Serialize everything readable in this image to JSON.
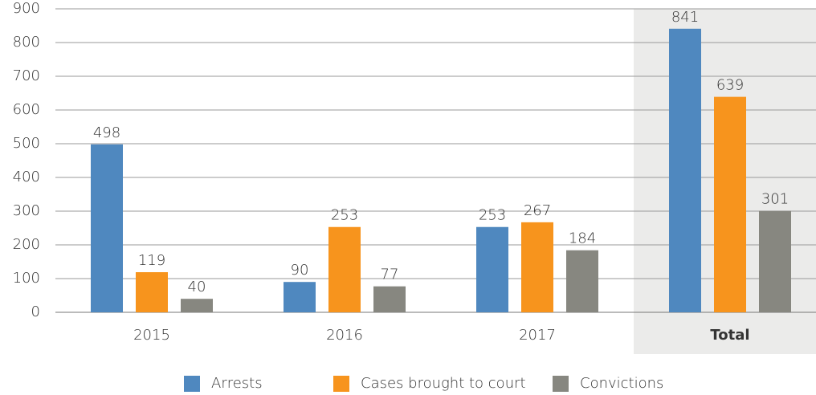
{
  "chart_data": {
    "type": "bar",
    "categories": [
      "2015",
      "2016",
      "2017",
      "Total"
    ],
    "series": [
      {
        "name": "Arrests",
        "color": "#4f88bf",
        "values": [
          498,
          90,
          253,
          841
        ]
      },
      {
        "name": "Cases brought to court",
        "color": "#f7941d",
        "values": [
          119,
          253,
          267,
          639
        ]
      },
      {
        "name": "Convictions",
        "color": "#878780",
        "values": [
          40,
          77,
          184,
          301
        ]
      }
    ],
    "ylim": [
      0,
      900
    ],
    "yticks": [
      0,
      100,
      200,
      300,
      400,
      500,
      600,
      700,
      800,
      900
    ],
    "grid": true,
    "highlight_index": 3,
    "legend": "bottom"
  }
}
